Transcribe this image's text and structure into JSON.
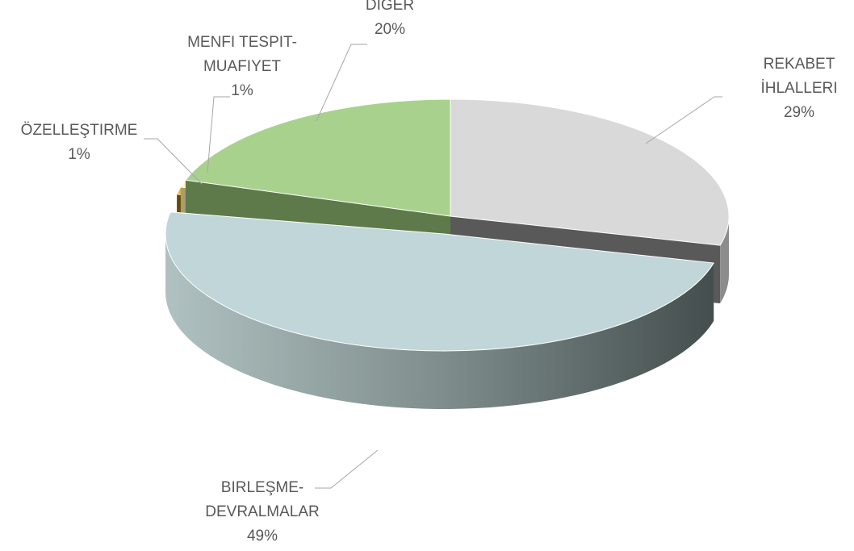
{
  "chart_data": {
    "type": "pie3d",
    "categories": [
      "REKABET İHLALLERI",
      "BIRLEŞME-DEVRALMALAR",
      "ÖZELLEŞTIRME",
      "MENFI TESPIT-MUAFIYET",
      "DİĞER"
    ],
    "values": [
      29,
      49,
      1,
      1,
      20
    ],
    "value_labels": [
      "29%",
      "49%",
      "1%",
      "1%",
      "20%"
    ],
    "colors": [
      "#d9d9d9",
      "#c0d6d8",
      "#f2b418",
      "#fff5bf",
      "#a9d18e"
    ]
  }
}
